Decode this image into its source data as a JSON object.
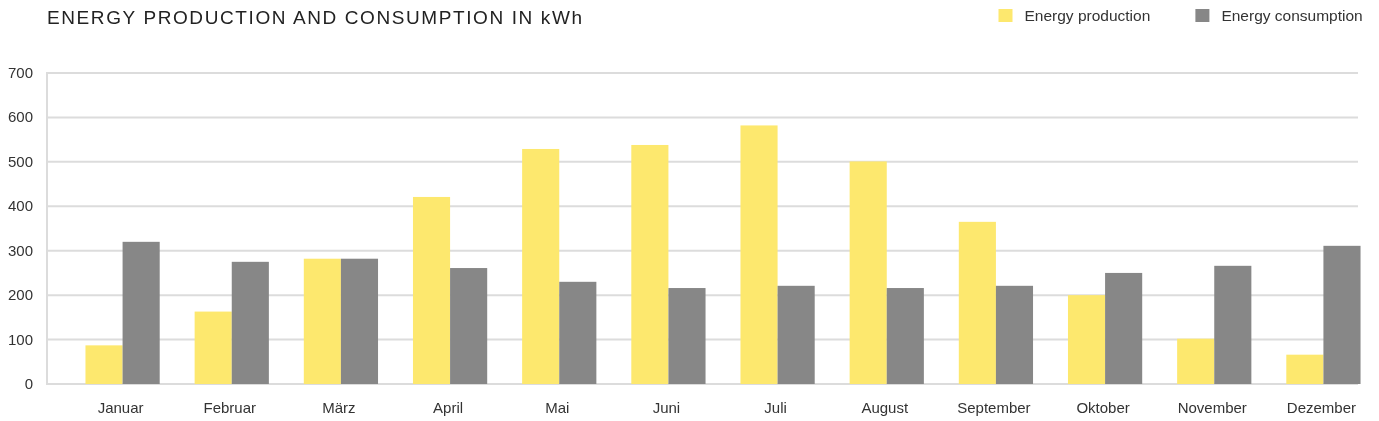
{
  "chart_data": {
    "type": "bar",
    "title": "ENERGY PRODUCTION AND CONSUMPTION IN kWh",
    "categories": [
      "Januar",
      "Februar",
      "März",
      "April",
      "Mai",
      "Juni",
      "Juli",
      "August",
      "September",
      "Oktober",
      "November",
      "Dezember"
    ],
    "series": [
      {
        "name": "Energy production",
        "color": "#fde86e",
        "values": [
          87,
          163,
          282,
          421,
          529,
          538,
          582,
          501,
          365,
          200,
          102,
          66
        ]
      },
      {
        "name": "Energy consumption",
        "color": "#878787",
        "values": [
          320,
          275,
          282,
          261,
          230,
          216,
          221,
          216,
          221,
          250,
          266,
          311
        ]
      }
    ],
    "ylim": [
      0,
      700
    ],
    "yticks": [
      0,
      100,
      200,
      300,
      400,
      500,
      600,
      700
    ],
    "grid": "y",
    "legend": "top right"
  }
}
